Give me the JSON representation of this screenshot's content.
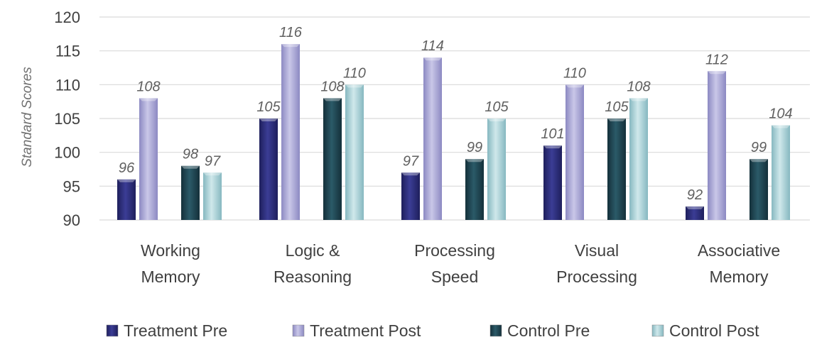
{
  "chart_data": {
    "type": "bar",
    "title": "",
    "xlabel": "",
    "ylabel": "Standard Scores",
    "ylim": [
      90,
      120
    ],
    "yticks": [
      90,
      95,
      100,
      105,
      110,
      115,
      120
    ],
    "grid": true,
    "legend_position": "bottom",
    "categories": [
      [
        "Working",
        "Memory"
      ],
      [
        "Logic &",
        "Reasoning"
      ],
      [
        "Processing",
        "Speed"
      ],
      [
        "Visual",
        "Processing"
      ],
      [
        "Associative",
        "Memory"
      ]
    ],
    "series": [
      {
        "name": "Treatment Pre",
        "color": "#2e2f7a",
        "values": [
          96,
          105,
          97,
          101,
          92
        ]
      },
      {
        "name": "Treatment Post",
        "color": "#a9a7d4",
        "values": [
          108,
          116,
          114,
          110,
          112
        ]
      },
      {
        "name": "Control Pre",
        "color": "#1f4450",
        "values": [
          98,
          108,
          99,
          105,
          99
        ]
      },
      {
        "name": "Control Post",
        "color": "#a8d0d6",
        "values": [
          97,
          110,
          105,
          108,
          104
        ]
      }
    ]
  }
}
